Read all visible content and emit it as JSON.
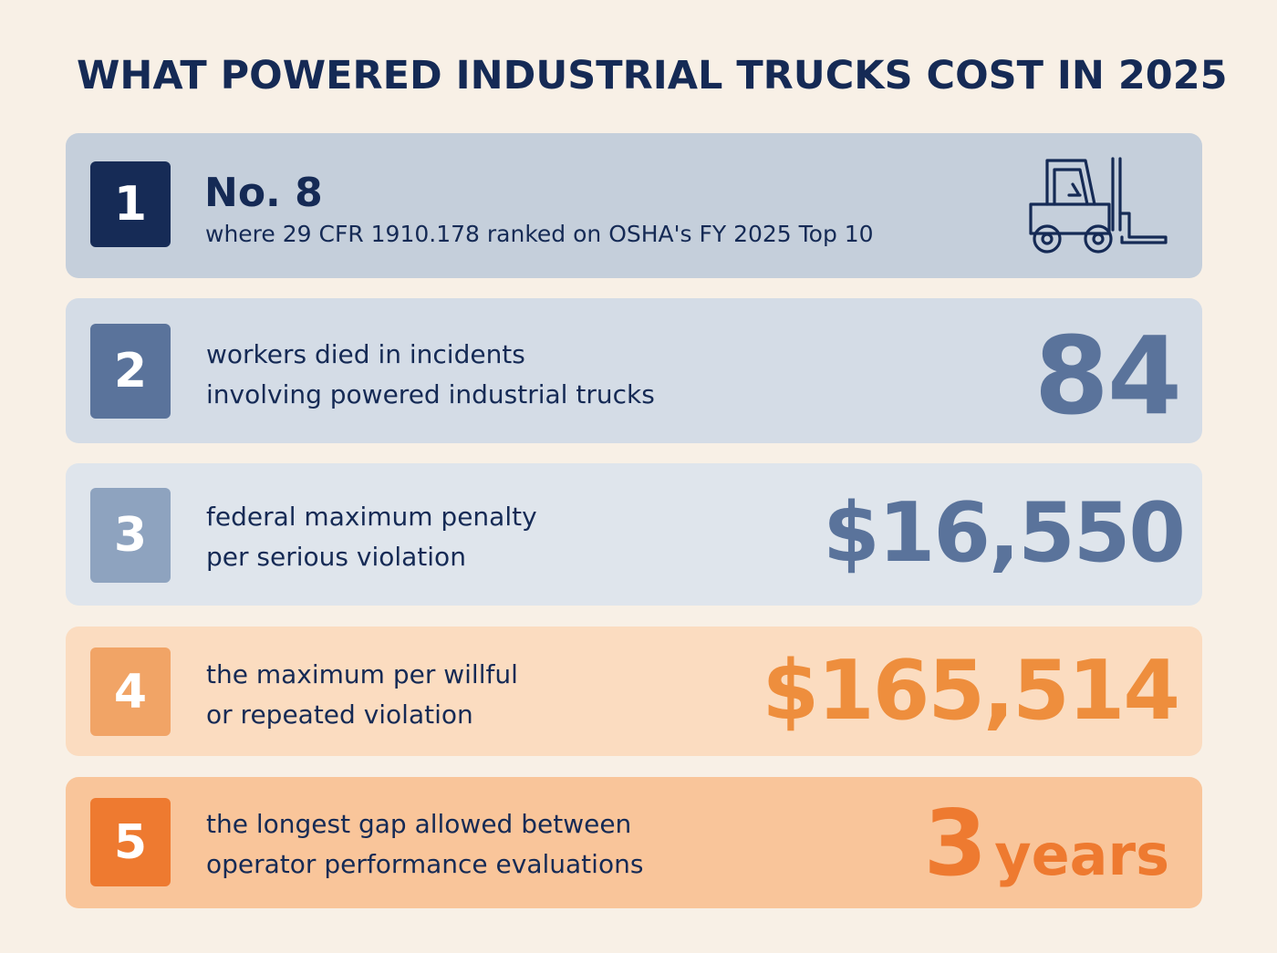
{
  "title": "WHAT POWERED INDUSTRIAL TRUCKS COST IN 2025",
  "cards": [
    {
      "number": "1",
      "headline": "No. 8",
      "text": "where 29 CFR 1910.178 ranked on OSHA's FY 2025 Top 10",
      "icon": "forklift-icon",
      "badge_color": "#162b56",
      "bg_color": "#c5cfdb"
    },
    {
      "number": "2",
      "line1": "workers died in incidents",
      "line2": "involving powered industrial trucks",
      "stat": "84",
      "badge_color": "#5a739b",
      "bg_color": "#d4dce6"
    },
    {
      "number": "3",
      "line1": "federal maximum penalty",
      "line2": "per serious violation",
      "stat": "$16,550",
      "badge_color": "#8ea3bf",
      "bg_color": "#dfe5ec"
    },
    {
      "number": "4",
      "line1": "the maximum per willful",
      "line2": "or repeated violation",
      "stat": "$165,514",
      "badge_color": "#f1a466",
      "bg_color": "#fbdcc0"
    },
    {
      "number": "5",
      "line1": "the longest gap allowed between",
      "line2": "operator performance evaluations",
      "stat": "3",
      "stat_unit": "years",
      "badge_color": "#ee7a30",
      "bg_color": "#f9c59a"
    }
  ]
}
